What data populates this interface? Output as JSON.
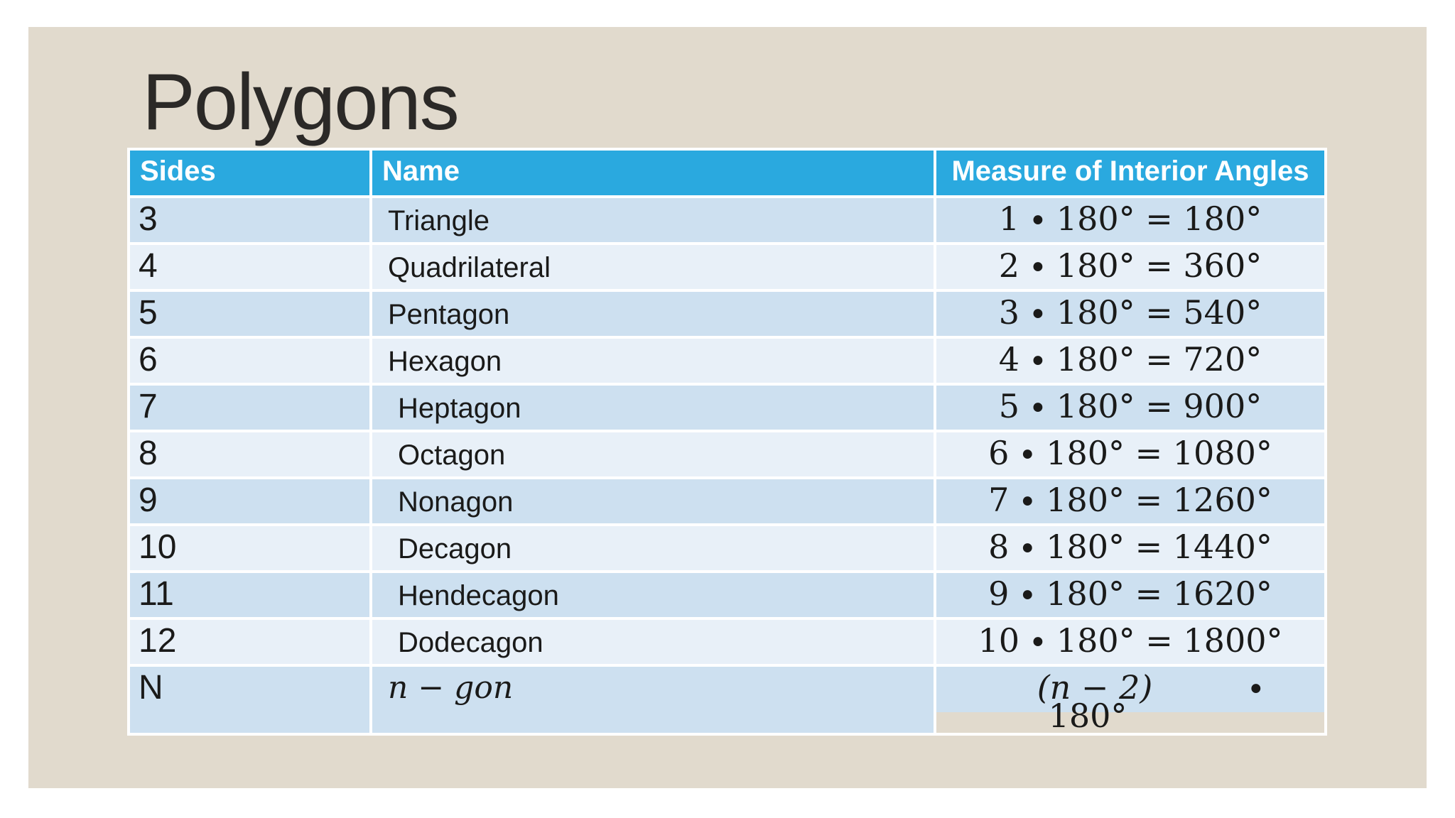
{
  "slide_title": "Polygons",
  "table": {
    "headers": [
      "Sides",
      "Name",
      "Measure of Interior Angles"
    ],
    "rows": [
      {
        "sides": "3",
        "name": "Triangle",
        "measure": "1 ∙ 180° = 180°"
      },
      {
        "sides": "4",
        "name": "Quadrilateral",
        "measure": "2 ∙ 180° = 360°"
      },
      {
        "sides": "5",
        "name": "Pentagon",
        "measure": "3 ∙ 180° = 540°"
      },
      {
        "sides": "6",
        "name": "Hexagon",
        "measure": "4 ∙ 180° = 720°"
      },
      {
        "sides": "7",
        "name": "Heptagon",
        "measure": "5 ∙ 180° = 900°",
        "indent": true
      },
      {
        "sides": "8",
        "name": "Octagon",
        "measure": "6 ∙ 180° = 1080°",
        "indent": true
      },
      {
        "sides": "9",
        "name": "Nonagon",
        "measure": "7 ∙ 180° = 1260°",
        "indent": true
      },
      {
        "sides": "10",
        "name": "Decagon",
        "measure": "8 ∙ 180° = 1440°",
        "indent": true
      },
      {
        "sides": "11",
        "name": "Hendecagon",
        "measure": "9 ∙ 180° = 1620°",
        "indent": true
      },
      {
        "sides": "12",
        "name": "Dodecagon",
        "measure": "10 ∙ 180° = 1800°",
        "indent": true
      },
      {
        "sides": "N",
        "name": "n − gon",
        "name_italic": true,
        "formula": {
          "line1": "(n − 2)",
          "bullet": "∙",
          "line2": "180°"
        }
      }
    ]
  },
  "colors": {
    "page_bg": "#ffffff",
    "slide_bg": "#e1dacd",
    "header_bg": "#2aa9df",
    "header_text": "#ffffff",
    "band_dark": "#cde0f0",
    "band_light": "#e8f0f8",
    "title_color": "#2b2927",
    "body_text": "#1a1a19"
  }
}
